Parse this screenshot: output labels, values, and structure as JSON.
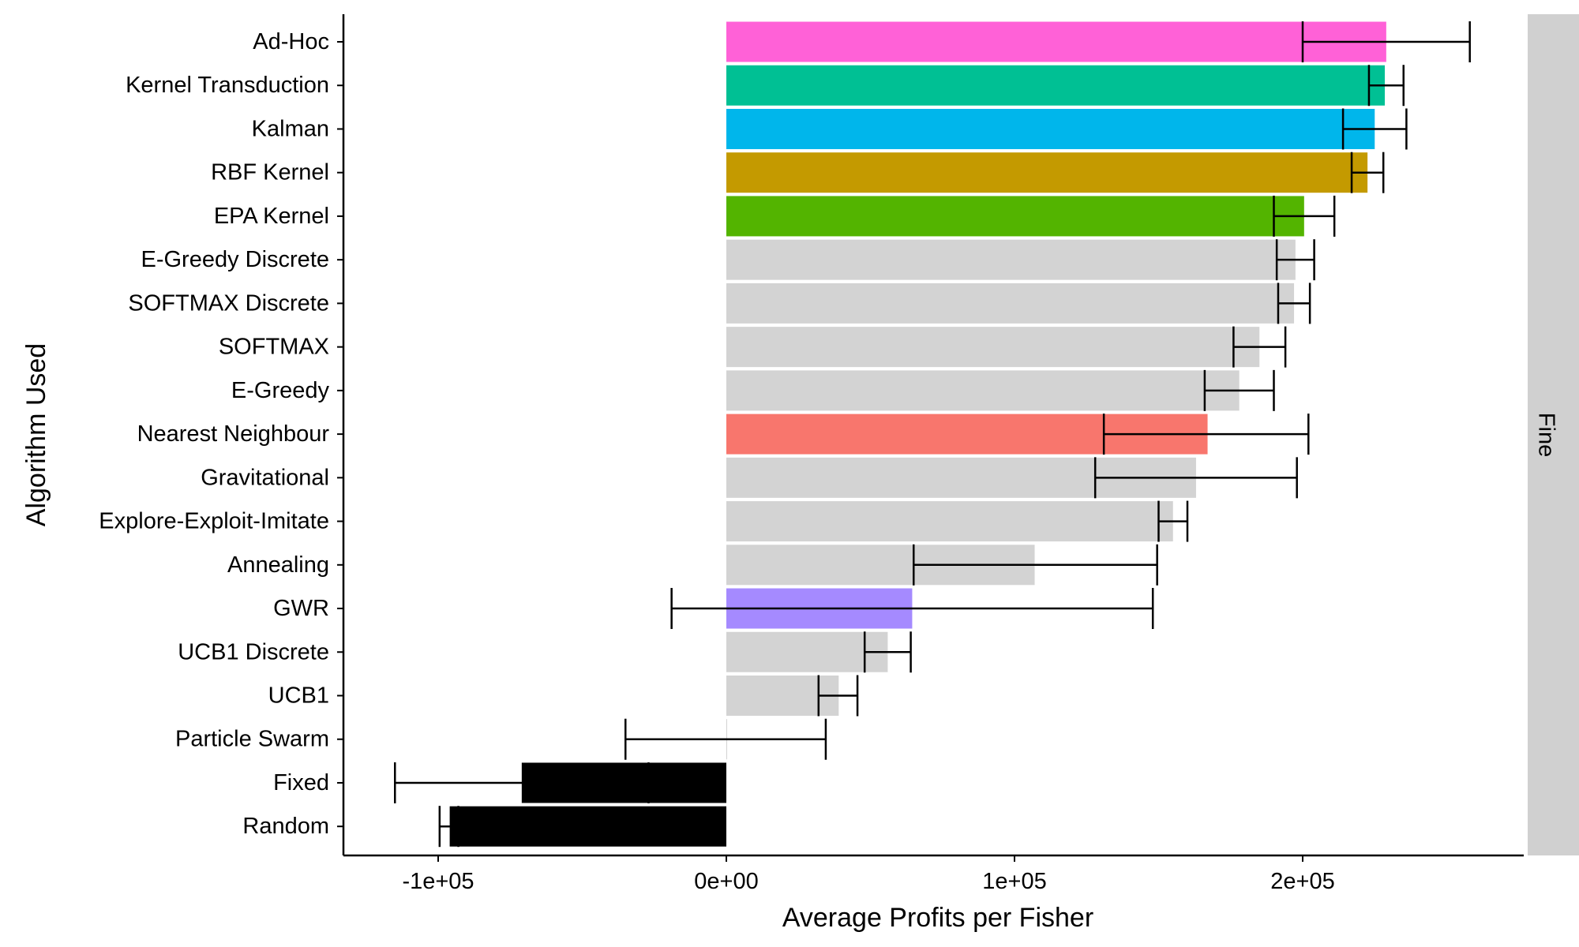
{
  "chart_data": {
    "type": "bar",
    "orientation": "horizontal",
    "xlabel": "Average Profits per Fisher",
    "ylabel": "Algorithm Used",
    "facet_label": "Fine",
    "xlim": [
      -135000,
      280000
    ],
    "x_ticks": [
      -100000,
      0,
      100000,
      200000
    ],
    "x_tick_labels": [
      "-1e+05",
      "0e+00",
      "1e+05",
      "2e+05"
    ],
    "grid": false,
    "legend": "none",
    "bars": [
      {
        "label": "Ad-Hoc",
        "value": 229000,
        "err_low": 200000,
        "err_high": 258000,
        "color": "#FF61D7"
      },
      {
        "label": "Kernel Transduction",
        "value": 228500,
        "err_low": 223000,
        "err_high": 235000,
        "color": "#00C094"
      },
      {
        "label": "Kalman",
        "value": 225000,
        "err_low": 214000,
        "err_high": 236000,
        "color": "#00B6EB"
      },
      {
        "label": "RBF Kernel",
        "value": 222500,
        "err_low": 217000,
        "err_high": 228000,
        "color": "#C49A00"
      },
      {
        "label": "EPA Kernel",
        "value": 200500,
        "err_low": 190000,
        "err_high": 211000,
        "color": "#53B400"
      },
      {
        "label": "E-Greedy Discrete",
        "value": 197500,
        "err_low": 191000,
        "err_high": 204000,
        "color": "#D3D3D3"
      },
      {
        "label": "SOFTMAX Discrete",
        "value": 197000,
        "err_low": 191500,
        "err_high": 202500,
        "color": "#D3D3D3"
      },
      {
        "label": "SOFTMAX",
        "value": 185000,
        "err_low": 176000,
        "err_high": 194000,
        "color": "#D3D3D3"
      },
      {
        "label": "E-Greedy",
        "value": 178000,
        "err_low": 166000,
        "err_high": 190000,
        "color": "#D3D3D3"
      },
      {
        "label": "Nearest Neighbour",
        "value": 167000,
        "err_low": 131000,
        "err_high": 202000,
        "color": "#F8766D"
      },
      {
        "label": "Gravitational",
        "value": 163000,
        "err_low": 128000,
        "err_high": 198000,
        "color": "#D3D3D3"
      },
      {
        "label": "Explore-Exploit-Imitate",
        "value": 155000,
        "err_low": 150000,
        "err_high": 160000,
        "color": "#D3D3D3"
      },
      {
        "label": "Annealing",
        "value": 107000,
        "err_low": 65000,
        "err_high": 149500,
        "color": "#D3D3D3"
      },
      {
        "label": "GWR",
        "value": 64500,
        "err_low": -19000,
        "err_high": 148000,
        "color": "#A58AFF"
      },
      {
        "label": "UCB1 Discrete",
        "value": 56000,
        "err_low": 48000,
        "err_high": 64000,
        "color": "#D3D3D3"
      },
      {
        "label": "UCB1",
        "value": 39000,
        "err_low": 32000,
        "err_high": 45500,
        "color": "#D3D3D3"
      },
      {
        "label": "Particle Swarm",
        "value": 0,
        "err_low": -35000,
        "err_high": 34500,
        "color": "#D3D3D3"
      },
      {
        "label": "Fixed",
        "value": -71000,
        "err_low": -115000,
        "err_high": -27000,
        "color": "#000000"
      },
      {
        "label": "Random",
        "value": -96000,
        "err_low": -99500,
        "err_high": -93000,
        "color": "#000000"
      }
    ]
  }
}
